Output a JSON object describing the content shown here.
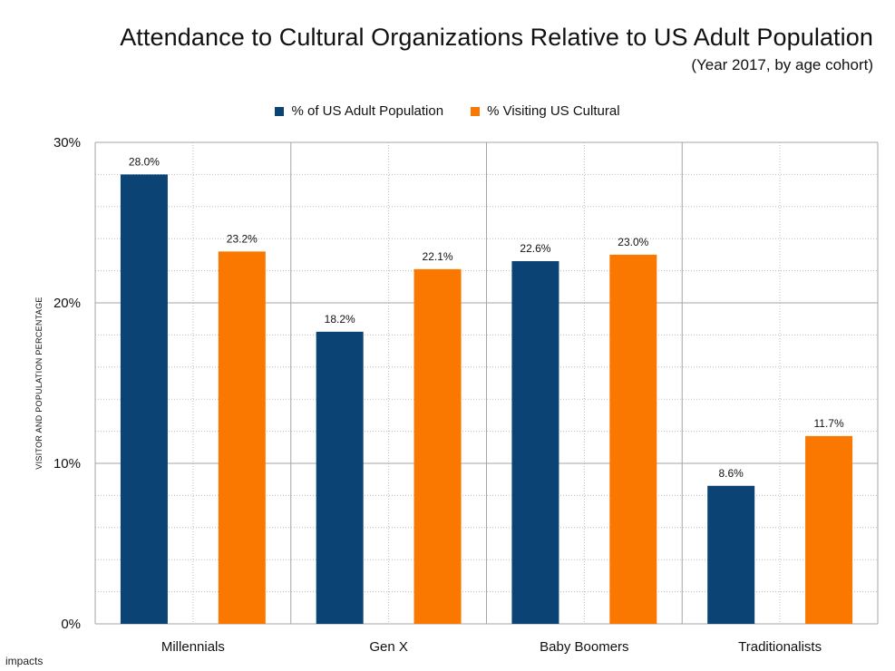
{
  "chart_data": {
    "type": "bar",
    "title": "Attendance to Cultural Organizations Relative to US Adult Population",
    "subtitle": "(Year 2017, by age cohort)",
    "xlabel": "",
    "ylabel": "VISITOR AND POPULATION PERCENTAGE",
    "ylim": [
      0,
      30
    ],
    "yticks": [
      "0%",
      "10%",
      "20%",
      "30%"
    ],
    "grid": true,
    "legend_position": "top-center",
    "categories": [
      "Millennials",
      "Gen X",
      "Baby Boomers",
      "Traditionalists"
    ],
    "series": [
      {
        "name": "% of US Adult Population",
        "color": "#0b4374",
        "values": [
          28.0,
          18.2,
          22.6,
          8.6
        ],
        "labels": [
          "28.0%",
          "18.2%",
          "22.6%",
          "8.6%"
        ]
      },
      {
        "name": "% Visiting US Cultural",
        "color": "#fb7800",
        "values": [
          23.2,
          22.1,
          23.0,
          11.7
        ],
        "labels": [
          "23.2%",
          "22.1%",
          "23.0%",
          "11.7%"
        ]
      }
    ]
  },
  "footer": {
    "brand": "impacts"
  }
}
